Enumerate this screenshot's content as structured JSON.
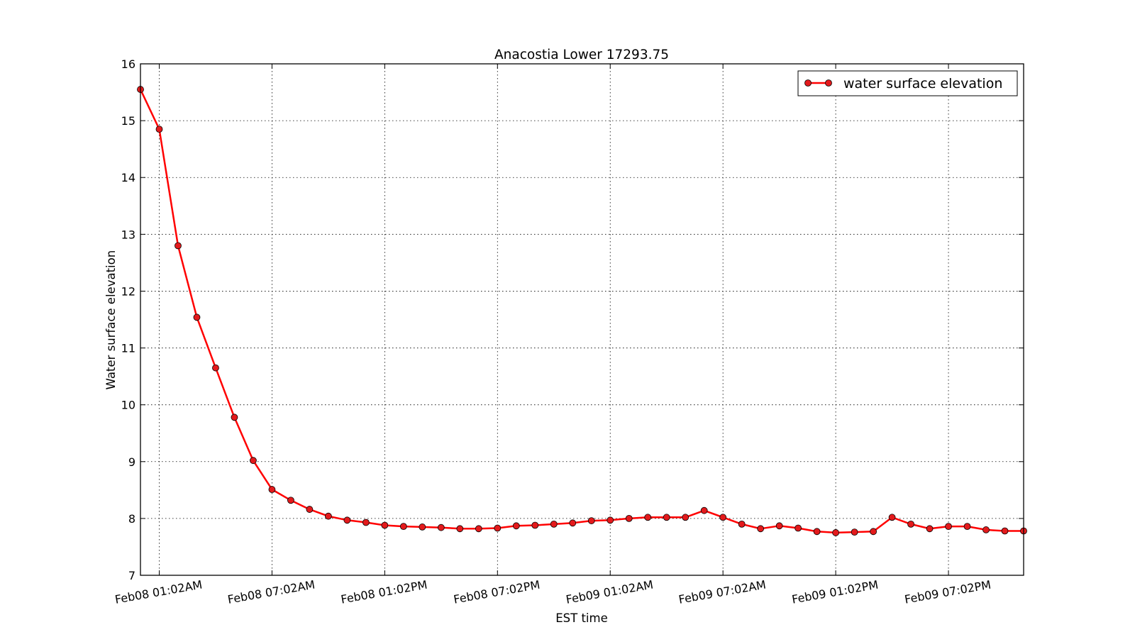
{
  "chart_data": {
    "type": "line",
    "title": "Anacostia Lower 17293.75",
    "xlabel": "EST time",
    "ylabel": "Water surface elevation",
    "ylim": [
      7,
      16
    ],
    "xlim_hours": [
      0,
      47
    ],
    "grid": true,
    "legend_position": "top-right",
    "y_ticks": [
      {
        "value": 7,
        "label": "7"
      },
      {
        "value": 8,
        "label": "8"
      },
      {
        "value": 9,
        "label": "9"
      },
      {
        "value": 10,
        "label": "10"
      },
      {
        "value": 11,
        "label": "11"
      },
      {
        "value": 12,
        "label": "12"
      },
      {
        "value": 13,
        "label": "13"
      },
      {
        "value": 14,
        "label": "14"
      },
      {
        "value": 15,
        "label": "15"
      },
      {
        "value": 16,
        "label": "16"
      }
    ],
    "x_ticks": [
      {
        "hour": 1,
        "label": "Feb08 01:02AM"
      },
      {
        "hour": 7,
        "label": "Feb08 07:02AM"
      },
      {
        "hour": 13,
        "label": "Feb08 01:02PM"
      },
      {
        "hour": 19,
        "label": "Feb08 07:02PM"
      },
      {
        "hour": 25,
        "label": "Feb09 01:02AM"
      },
      {
        "hour": 31,
        "label": "Feb09 07:02AM"
      },
      {
        "hour": 37,
        "label": "Feb09 01:02PM"
      },
      {
        "hour": 43,
        "label": "Feb09 07:02PM"
      }
    ],
    "series": [
      {
        "name": "water surface elevation",
        "color": "#ff0000",
        "marker_color": "#e31a1c",
        "x": [
          0,
          1,
          2,
          3,
          4,
          5,
          6,
          7,
          8,
          9,
          10,
          11,
          12,
          13,
          14,
          15,
          16,
          17,
          18,
          19,
          20,
          21,
          22,
          23,
          24,
          25,
          26,
          27,
          28,
          29,
          30,
          31,
          32,
          33,
          34,
          35,
          36,
          37,
          38,
          39,
          40,
          41,
          42,
          43,
          44,
          45,
          46,
          47
        ],
        "values": [
          15.55,
          14.85,
          12.8,
          11.54,
          10.65,
          9.78,
          9.02,
          8.51,
          8.32,
          8.16,
          8.04,
          7.97,
          7.93,
          7.88,
          7.86,
          7.85,
          7.84,
          7.82,
          7.82,
          7.83,
          7.87,
          7.88,
          7.9,
          7.92,
          7.96,
          7.97,
          8.0,
          8.02,
          8.02,
          8.02,
          8.14,
          8.02,
          7.9,
          7.82,
          7.87,
          7.83,
          7.77,
          7.75,
          7.76,
          7.77,
          8.02,
          7.9,
          7.82,
          7.86,
          7.86,
          7.8,
          7.78,
          7.78
        ]
      }
    ]
  }
}
